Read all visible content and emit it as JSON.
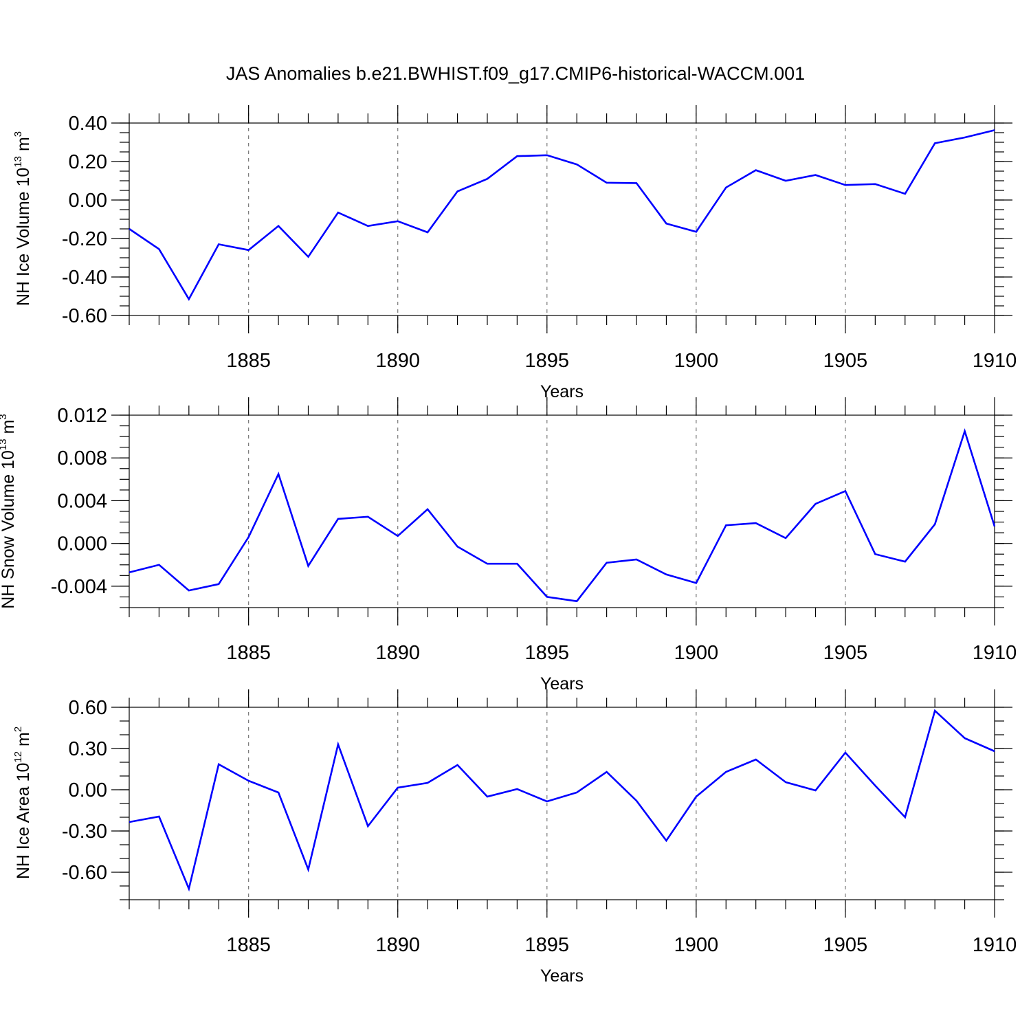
{
  "title": "JAS Anomalies b.e21.BWHIST.f09_g17.CMIP6-historical-WACCM.001",
  "chart_data": [
    {
      "type": "line",
      "ylabel": "NH Ice Volume 10",
      "ylabel_exp": "13",
      "ylabel_unit": " m",
      "ylabel_unit_exp": "3",
      "xlabel": "Years",
      "xlim": [
        1881,
        1910
      ],
      "ylim": [
        -0.6,
        0.4
      ],
      "yticks": [
        -0.6,
        -0.4,
        -0.2,
        0.0,
        0.2,
        0.4
      ],
      "ytick_labels": [
        "-0.60",
        "-0.40",
        "-0.20",
        "0.00",
        "0.20",
        "0.40"
      ],
      "yminor_step": 0.05,
      "xticks": [
        1885,
        1890,
        1895,
        1900,
        1905,
        1910
      ],
      "xtick_labels": [
        "1885",
        "1890",
        "1895",
        "1900",
        "1905",
        "1910"
      ],
      "vgrid": [
        1885,
        1890,
        1895,
        1900,
        1905
      ],
      "x": [
        1881,
        1882,
        1883,
        1884,
        1885,
        1886,
        1887,
        1888,
        1889,
        1890,
        1891,
        1892,
        1893,
        1894,
        1895,
        1896,
        1897,
        1898,
        1899,
        1900,
        1901,
        1902,
        1903,
        1904,
        1905,
        1906,
        1907,
        1908,
        1909,
        1910
      ],
      "values": [
        -0.15,
        -0.255,
        -0.515,
        -0.23,
        -0.26,
        -0.135,
        -0.295,
        -0.065,
        -0.135,
        -0.11,
        -0.168,
        0.045,
        0.11,
        0.228,
        0.233,
        0.185,
        0.09,
        0.088,
        -0.122,
        -0.165,
        0.065,
        0.155,
        0.1,
        0.13,
        0.078,
        0.083,
        0.032,
        0.295,
        0.325,
        0.363
      ],
      "color": "#0000ff"
    },
    {
      "type": "line",
      "ylabel": "NH Snow Volume 10",
      "ylabel_exp": "13",
      "ylabel_unit": " m",
      "ylabel_unit_exp": "3",
      "xlabel": "Years",
      "xlim": [
        1881,
        1910
      ],
      "ylim": [
        -0.006,
        0.012
      ],
      "yticks": [
        -0.004,
        0.0,
        0.004,
        0.008,
        0.012
      ],
      "ytick_labels": [
        "-0.004",
        "0.000",
        "0.004",
        "0.008",
        "0.012"
      ],
      "yminor_step": 0.001,
      "xticks": [
        1885,
        1890,
        1895,
        1900,
        1905,
        1910
      ],
      "xtick_labels": [
        "1885",
        "1890",
        "1895",
        "1900",
        "1905",
        "1910"
      ],
      "vgrid": [
        1885,
        1890,
        1895,
        1900,
        1905
      ],
      "x": [
        1881,
        1882,
        1883,
        1884,
        1885,
        1886,
        1887,
        1888,
        1889,
        1890,
        1891,
        1892,
        1893,
        1894,
        1895,
        1896,
        1897,
        1898,
        1899,
        1900,
        1901,
        1902,
        1903,
        1904,
        1905,
        1906,
        1907,
        1908,
        1909,
        1910
      ],
      "values": [
        -0.0027,
        -0.002,
        -0.0044,
        -0.0038,
        0.0006,
        0.0065,
        -0.0021,
        0.0023,
        0.0025,
        0.0007,
        0.0032,
        -0.0003,
        -0.0019,
        -0.0019,
        -0.005,
        -0.0054,
        -0.0018,
        -0.0015,
        -0.0029,
        -0.0037,
        0.0017,
        0.0019,
        0.0005,
        0.0037,
        0.0049,
        -0.001,
        -0.0017,
        0.0018,
        0.0105,
        0.0016
      ],
      "color": "#0000ff"
    },
    {
      "type": "line",
      "ylabel": "NH Ice Area 10",
      "ylabel_exp": "12",
      "ylabel_unit": " m",
      "ylabel_unit_exp": "2",
      "xlabel": "Years",
      "xlim": [
        1881,
        1910
      ],
      "ylim": [
        -0.8,
        0.6
      ],
      "yticks": [
        -0.6,
        -0.3,
        0.0,
        0.3,
        0.6
      ],
      "ytick_labels": [
        "-0.60",
        "-0.30",
        "0.00",
        "0.30",
        "0.60"
      ],
      "yminor_step": 0.1,
      "xticks": [
        1885,
        1890,
        1895,
        1900,
        1905,
        1910
      ],
      "xtick_labels": [
        "1885",
        "1890",
        "1895",
        "1900",
        "1905",
        "1910"
      ],
      "vgrid": [
        1885,
        1890,
        1895,
        1900,
        1905
      ],
      "x": [
        1881,
        1882,
        1883,
        1884,
        1885,
        1886,
        1887,
        1888,
        1889,
        1890,
        1891,
        1892,
        1893,
        1894,
        1895,
        1896,
        1897,
        1898,
        1899,
        1900,
        1901,
        1902,
        1903,
        1904,
        1905,
        1906,
        1907,
        1908,
        1909,
        1910
      ],
      "values": [
        -0.235,
        -0.195,
        -0.72,
        0.185,
        0.065,
        -0.02,
        -0.58,
        0.33,
        -0.265,
        0.015,
        0.05,
        0.18,
        -0.05,
        0.005,
        -0.085,
        -0.02,
        0.13,
        -0.08,
        -0.37,
        -0.05,
        0.13,
        0.22,
        0.055,
        -0.005,
        0.27,
        0.03,
        -0.2,
        0.575,
        0.375,
        0.28
      ],
      "color": "#0000ff"
    }
  ]
}
